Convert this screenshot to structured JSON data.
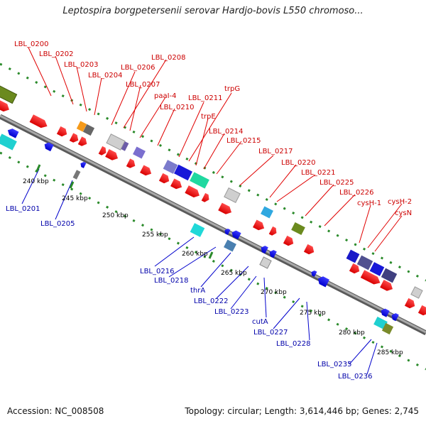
{
  "title": "Leptospira borgpetersenii serovar Hardjo-bovis L550 chromoso...",
  "footer": {
    "accession": "Accession: NC_008508",
    "summary": "Topology: circular; Length: 3,614,446 bp; Genes: 2,745"
  },
  "colors": {
    "forward_label": "#cc0000",
    "reverse_label": "#0000aa",
    "backbone": "#888888",
    "dots": "#2a8a2a"
  },
  "scale_labels": [
    "240 kbp",
    "245 kbp",
    "250 kbp",
    "255 kbp",
    "260 kbp",
    "265 kbp",
    "270 kbp",
    "275 kbp",
    "280 kbp",
    "285 kbp"
  ],
  "forward_labels": [
    "LBL_0200",
    "LBL_0202",
    "LBL_0203",
    "LBL_0204",
    "LBL_0206",
    "LBL_0208",
    "LBL_0207",
    "paaI-4",
    "LBL_0210",
    "LBL_0211",
    "trpG",
    "trpE",
    "LBL_0214",
    "LBL_0215",
    "LBL_0217",
    "LBL_0220",
    "LBL_0221",
    "LBL_0225",
    "LBL_0226",
    "cysH-1",
    "cysH-2",
    "cysN"
  ],
  "reverse_labels": [
    "LBL_0201",
    "LBL_0205",
    "LBL_0216",
    "LBL_0218",
    "thrA",
    "LBL_0222",
    "LBL_0223",
    "cutA",
    "LBL_0227",
    "LBL_0228",
    "LBL_0235",
    "LBL_0236"
  ]
}
